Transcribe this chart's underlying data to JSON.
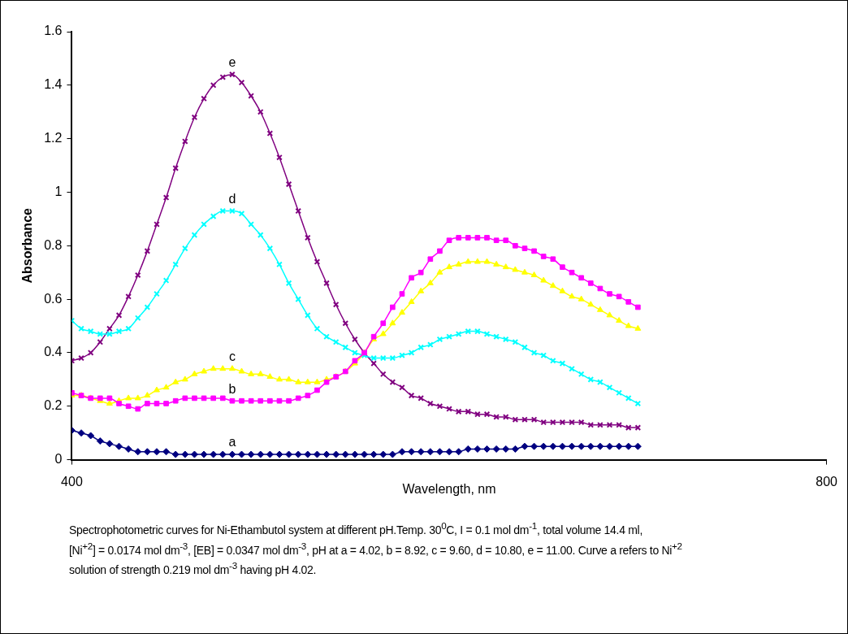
{
  "chart_data": {
    "type": "line",
    "xlabel": "Wavelength, nm",
    "ylabel": "Absorbance",
    "x": [
      400,
      405,
      410,
      415,
      420,
      425,
      430,
      435,
      440,
      445,
      450,
      455,
      460,
      465,
      470,
      475,
      480,
      485,
      490,
      495,
      500,
      505,
      510,
      515,
      520,
      525,
      530,
      535,
      540,
      545,
      550,
      555,
      560,
      565,
      570,
      575,
      580,
      585,
      590,
      595,
      600,
      605,
      610,
      615,
      620,
      625,
      630,
      635,
      640,
      645,
      650,
      655,
      660,
      665,
      670,
      675,
      680,
      685,
      690,
      695,
      700
    ],
    "series": [
      {
        "name": "a",
        "color": "#000080",
        "marker": "diamond",
        "values": [
          0.11,
          0.1,
          0.09,
          0.07,
          0.06,
          0.05,
          0.04,
          0.03,
          0.03,
          0.03,
          0.03,
          0.02,
          0.02,
          0.02,
          0.02,
          0.02,
          0.02,
          0.02,
          0.02,
          0.02,
          0.02,
          0.02,
          0.02,
          0.02,
          0.02,
          0.02,
          0.02,
          0.02,
          0.02,
          0.02,
          0.02,
          0.02,
          0.02,
          0.02,
          0.02,
          0.03,
          0.03,
          0.03,
          0.03,
          0.03,
          0.03,
          0.03,
          0.04,
          0.04,
          0.04,
          0.04,
          0.04,
          0.04,
          0.05,
          0.05,
          0.05,
          0.05,
          0.05,
          0.05,
          0.05,
          0.05,
          0.05,
          0.05,
          0.05,
          0.05,
          0.05
        ]
      },
      {
        "name": "b",
        "color": "#ff00ff",
        "marker": "square",
        "values": [
          0.25,
          0.24,
          0.23,
          0.23,
          0.23,
          0.21,
          0.2,
          0.19,
          0.21,
          0.21,
          0.21,
          0.22,
          0.23,
          0.23,
          0.23,
          0.23,
          0.23,
          0.22,
          0.22,
          0.22,
          0.22,
          0.22,
          0.22,
          0.22,
          0.23,
          0.24,
          0.26,
          0.29,
          0.31,
          0.33,
          0.37,
          0.4,
          0.46,
          0.51,
          0.57,
          0.62,
          0.68,
          0.7,
          0.75,
          0.78,
          0.82,
          0.83,
          0.83,
          0.83,
          0.83,
          0.82,
          0.82,
          0.8,
          0.79,
          0.78,
          0.76,
          0.75,
          0.72,
          0.7,
          0.68,
          0.66,
          0.64,
          0.62,
          0.61,
          0.59,
          0.57
        ]
      },
      {
        "name": "c",
        "color": "#ffff00",
        "marker": "triangle",
        "values": [
          0.24,
          0.24,
          0.23,
          0.22,
          0.21,
          0.22,
          0.23,
          0.23,
          0.24,
          0.26,
          0.27,
          0.29,
          0.3,
          0.32,
          0.33,
          0.34,
          0.34,
          0.34,
          0.33,
          0.32,
          0.32,
          0.31,
          0.3,
          0.3,
          0.29,
          0.29,
          0.29,
          0.3,
          0.31,
          0.33,
          0.36,
          0.4,
          0.45,
          0.47,
          0.51,
          0.55,
          0.59,
          0.63,
          0.66,
          0.7,
          0.72,
          0.73,
          0.74,
          0.74,
          0.74,
          0.73,
          0.72,
          0.71,
          0.7,
          0.69,
          0.67,
          0.65,
          0.63,
          0.61,
          0.6,
          0.58,
          0.56,
          0.54,
          0.52,
          0.5,
          0.49
        ]
      },
      {
        "name": "d",
        "color": "#00ffff",
        "marker": "cross",
        "values": [
          0.52,
          0.49,
          0.48,
          0.47,
          0.47,
          0.48,
          0.49,
          0.53,
          0.57,
          0.62,
          0.67,
          0.73,
          0.79,
          0.84,
          0.88,
          0.91,
          0.93,
          0.93,
          0.92,
          0.88,
          0.84,
          0.79,
          0.73,
          0.66,
          0.6,
          0.54,
          0.49,
          0.46,
          0.44,
          0.42,
          0.4,
          0.39,
          0.38,
          0.38,
          0.38,
          0.39,
          0.4,
          0.42,
          0.43,
          0.45,
          0.46,
          0.47,
          0.48,
          0.48,
          0.47,
          0.46,
          0.45,
          0.44,
          0.42,
          0.4,
          0.39,
          0.37,
          0.36,
          0.34,
          0.32,
          0.3,
          0.29,
          0.27,
          0.25,
          0.23,
          0.21
        ]
      },
      {
        "name": "e",
        "color": "#800080",
        "marker": "cross",
        "values": [
          0.37,
          0.38,
          0.4,
          0.44,
          0.49,
          0.54,
          0.61,
          0.69,
          0.78,
          0.88,
          0.98,
          1.09,
          1.19,
          1.28,
          1.35,
          1.4,
          1.43,
          1.44,
          1.41,
          1.36,
          1.3,
          1.22,
          1.13,
          1.03,
          0.93,
          0.83,
          0.74,
          0.66,
          0.58,
          0.51,
          0.45,
          0.4,
          0.36,
          0.32,
          0.29,
          0.27,
          0.24,
          0.23,
          0.21,
          0.2,
          0.19,
          0.18,
          0.18,
          0.17,
          0.17,
          0.16,
          0.16,
          0.15,
          0.15,
          0.15,
          0.14,
          0.14,
          0.14,
          0.14,
          0.14,
          0.13,
          0.13,
          0.13,
          0.13,
          0.12,
          0.12
        ]
      }
    ],
    "xlim": [
      400,
      800
    ],
    "xticks": [
      400,
      800
    ],
    "ylim": [
      0,
      1.6
    ],
    "yticks": [
      0,
      0.2,
      0.4,
      0.6,
      0.8,
      1,
      1.2,
      1.4,
      1.6
    ],
    "grid": false,
    "legend": false,
    "line_style": "solid",
    "annotations": [
      "Spectrophotometric curves for Ni-Ethambutol system at different pH.Temp. 30$^{0}$C, I = 0.1 mol dm$^{-1}$, total  volume 14.4 ml,",
      "[Ni$^{+2}$] = 0.0174 mol dm$^{-3}$, [EB] = 0.0347 mol dm$^{-3}$, pH at a = 4.02, b = 8.92, c = 9.60, d = 10.80, e = 11.00. Curve a refers to Ni$^{+2}$",
      "solution of strength 0.219 mol dm$^{-3}$ having pH 4.02."
    ]
  }
}
